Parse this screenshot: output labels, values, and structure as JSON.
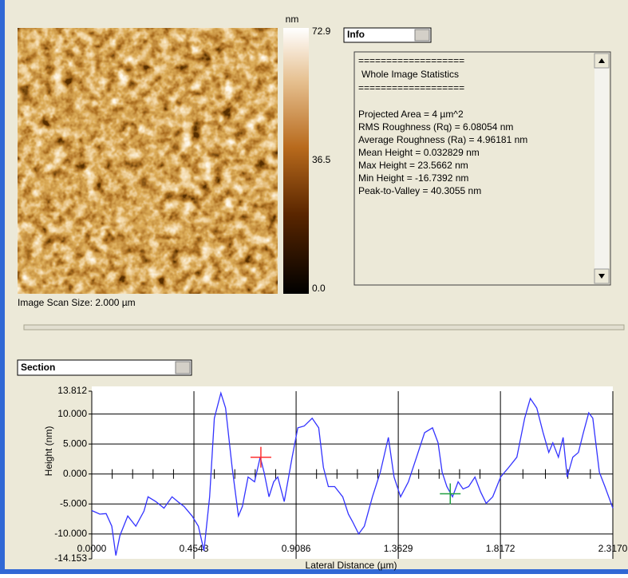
{
  "colorbar": {
    "unit": "nm",
    "lim": [
      0,
      72.9
    ],
    "ticks": [
      72.9,
      36.5,
      {
        "value": 0,
        "label": "0.0"
      }
    ]
  },
  "info_dropdown": "Info",
  "info_header": [
    "===================",
    "Whole Image Statistics",
    "==================="
  ],
  "info_stats": [
    "Projected Area = 4 µm^2",
    "RMS Roughness (Rq) = 6.08054 nm",
    "Average Roughness (Ra) = 4.96181 nm",
    "Mean Height = 0.032829 nm",
    "Max Height = 23.5662 nm",
    "Min Height = -16.7392 nm",
    "Peak-to-Valley = 40.3055 nm"
  ],
  "scan_size": "Image Scan Size:  2.000 µm",
  "section_dropdown": "Section",
  "chart_data": {
    "type": "line",
    "xlabel": "Lateral Distance (µm)",
    "ylabel": "Height (nm)",
    "color": "#3333ff",
    "x": [
      0,
      0.036,
      0.064,
      0.089,
      0.107,
      0.125,
      0.16,
      0.196,
      0.232,
      0.25,
      0.285,
      0.321,
      0.357,
      0.382,
      0.41,
      0.446,
      0.474,
      0.499,
      0.524,
      0.545,
      0.574,
      0.595,
      0.624,
      0.652,
      0.67,
      0.695,
      0.724,
      0.749,
      0.766,
      0.788,
      0.809,
      0.827,
      0.856,
      0.891,
      0.916,
      0.945,
      0.98,
      1.009,
      1.03,
      1.052,
      1.08,
      1.116,
      1.141,
      1.159,
      1.187,
      1.212,
      1.248,
      1.283,
      1.319,
      1.344,
      1.373,
      1.408,
      1.444,
      1.48,
      1.515,
      1.54,
      1.558,
      1.579,
      1.604,
      1.629,
      1.651,
      1.676,
      1.704,
      1.729,
      1.754,
      1.783,
      1.818,
      1.854,
      1.89,
      1.925,
      1.95,
      1.979,
      2.007,
      2.032,
      2.05,
      2.075,
      2.096,
      2.114,
      2.139,
      2.164,
      2.186,
      2.21,
      2.228,
      2.257,
      2.282,
      2.317
    ],
    "values": [
      -6.1,
      -6.7,
      -6.6,
      -8.7,
      -13.6,
      -10.3,
      -7.0,
      -8.7,
      -6.2,
      -3.8,
      -4.6,
      -5.7,
      -3.8,
      -4.6,
      -5.4,
      -7.0,
      -8.7,
      -12.8,
      -3.8,
      9.3,
      13.5,
      11.0,
      1.1,
      -7.0,
      -5.4,
      -0.5,
      -1.3,
      2.8,
      0.3,
      -3.8,
      -1.3,
      -0.5,
      -4.6,
      2.8,
      7.7,
      8.0,
      9.3,
      7.7,
      1.1,
      -2.1,
      -2.1,
      -3.8,
      -6.7,
      -7.9,
      -10.0,
      -8.7,
      -3.8,
      0.3,
      6.1,
      -0.5,
      -3.8,
      -1.3,
      2.8,
      6.9,
      7.7,
      5.2,
      0.3,
      -2.1,
      -3.8,
      -1.3,
      -2.5,
      -2.1,
      -0.5,
      -3.0,
      -4.9,
      -3.8,
      -0.5,
      1.1,
      2.8,
      9.3,
      12.6,
      11.0,
      6.9,
      3.6,
      5.2,
      2.8,
      6.1,
      -0.5,
      2.8,
      3.6,
      6.9,
      10.2,
      9.3,
      0.3,
      -2.1,
      -5.7
    ],
    "cursors": [
      {
        "x": 0.752,
        "y": 2.8,
        "color": "#ff3030"
      },
      {
        "x": 1.594,
        "y": -3.3,
        "color": "#20a040"
      }
    ],
    "xlim": [
      0,
      2.317
    ],
    "ylim": [
      -14.153,
      13.812
    ],
    "xticks": [
      {
        "value": 0,
        "label": "0.0000"
      },
      0.4543,
      0.9086,
      1.3629,
      1.8172,
      {
        "value": 2.317,
        "label": "2.3170"
      }
    ],
    "yticks": [
      13.812,
      {
        "value": 10,
        "label": "10.000"
      },
      {
        "value": 5,
        "label": "5.000"
      },
      {
        "value": 0,
        "label": "0.000"
      },
      {
        "value": -5,
        "label": "-5.000"
      },
      {
        "value": -10,
        "label": "-10.000"
      },
      -14.153
    ],
    "grid": true
  }
}
